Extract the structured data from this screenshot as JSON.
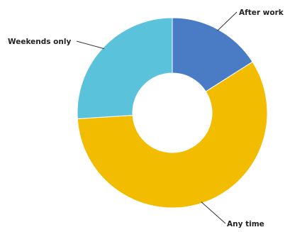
{
  "chart_data": {
    "type": "pie",
    "donut": true,
    "categories": [
      "After work",
      "Any time",
      "Weekends only"
    ],
    "values": [
      16,
      58,
      26
    ],
    "colors": [
      "#4a7cc6",
      "#f2bc00",
      "#5bc2dc"
    ],
    "title": "",
    "legend": "none"
  }
}
